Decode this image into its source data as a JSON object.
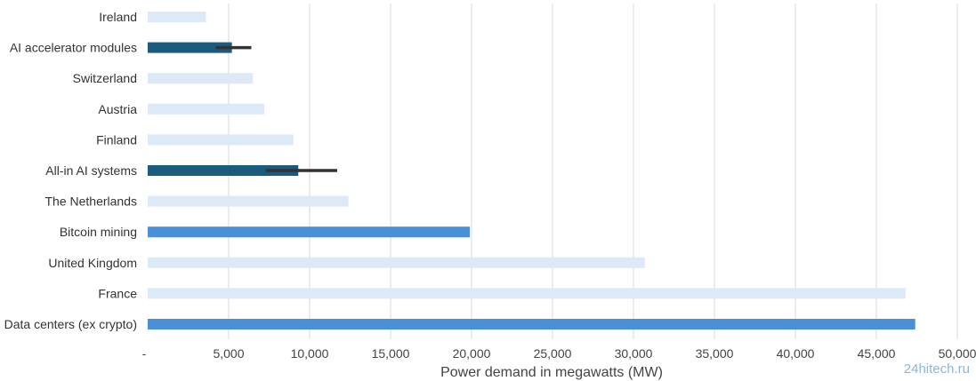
{
  "chart_data": {
    "type": "bar",
    "orientation": "horizontal",
    "categories": [
      "Ireland",
      "AI accelerator modules",
      "Switzerland",
      "Austria",
      "Finland",
      "All-in AI systems",
      "The Netherlands",
      "Bitcoin mining",
      "United Kingdom",
      "France",
      "Data centers (ex crypto)"
    ],
    "values": [
      3600,
      5200,
      6500,
      7200,
      9000,
      9300,
      12400,
      19900,
      30700,
      46800,
      47400
    ],
    "error_bars": [
      null,
      [
        4200,
        6400
      ],
      null,
      null,
      null,
      [
        7300,
        11700
      ],
      null,
      null,
      null,
      null,
      null
    ],
    "bar_colors": [
      "#dde9f6",
      "#1a5b7e",
      "#dde9f6",
      "#dde9f6",
      "#dde9f6",
      "#1a5b7e",
      "#dde9f6",
      "#4a90d9",
      "#dde9f6",
      "#dde9f6",
      "#4a90d9"
    ],
    "error_bar_color": "#333333",
    "xlim": [
      0,
      50000
    ],
    "xticks": [
      0,
      5000,
      10000,
      15000,
      20000,
      25000,
      30000,
      35000,
      40000,
      45000,
      50000
    ],
    "xtick_labels": [
      "-",
      "5,000",
      "10,000",
      "15,000",
      "20,000",
      "25,000",
      "30,000",
      "35,000",
      "40,000",
      "45,000",
      "50,000"
    ],
    "xlabel": "Power demand in megawatts (MW)",
    "ylabel": "",
    "title": "",
    "grid": "vertical",
    "grid_color": "#d9d9d9"
  },
  "watermark": "24hitech.ru"
}
